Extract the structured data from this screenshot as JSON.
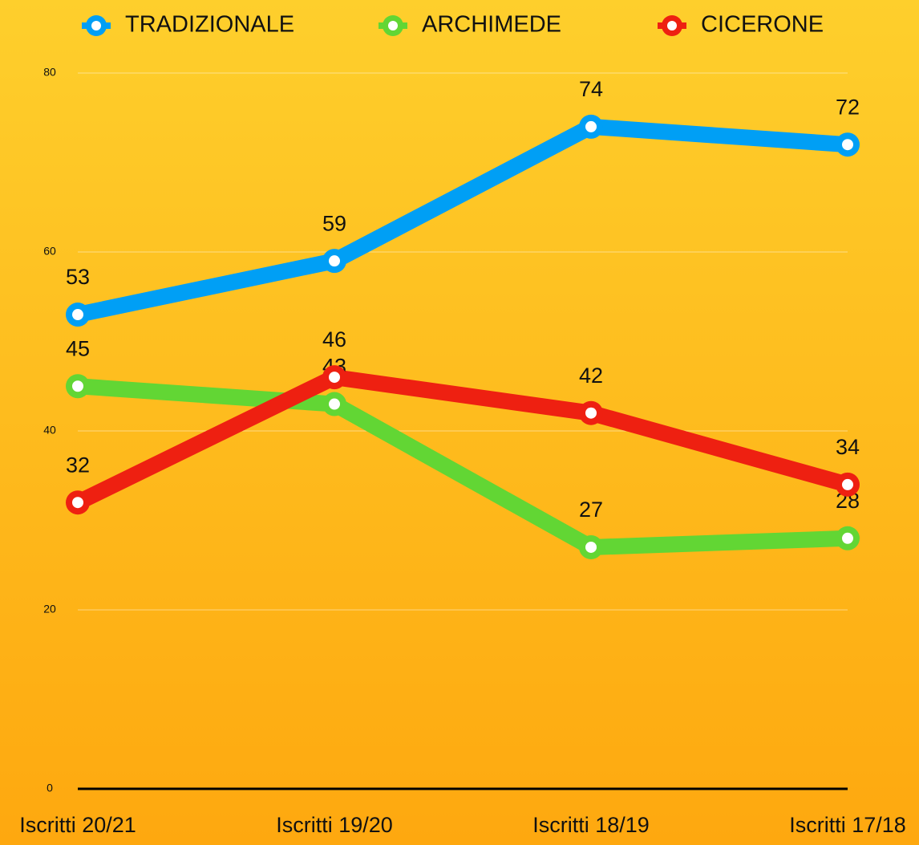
{
  "chart_data": {
    "type": "line",
    "categories": [
      "Iscritti 20/21",
      "Iscritti 19/20",
      "Iscritti 18/19",
      "Iscritti 17/18"
    ],
    "series": [
      {
        "name": "TRADIZIONALE",
        "color": "#009ff5",
        "values": [
          53,
          59,
          74,
          72
        ]
      },
      {
        "name": "ARCHIMEDE",
        "color": "#62d634",
        "values": [
          45,
          43,
          27,
          28
        ]
      },
      {
        "name": "CICERONE",
        "color": "#ee2011",
        "values": [
          32,
          46,
          42,
          34
        ]
      }
    ],
    "ylim": [
      0,
      80
    ],
    "yticks": [
      0,
      20,
      40,
      60,
      80
    ],
    "grid": true,
    "legend": "top"
  }
}
